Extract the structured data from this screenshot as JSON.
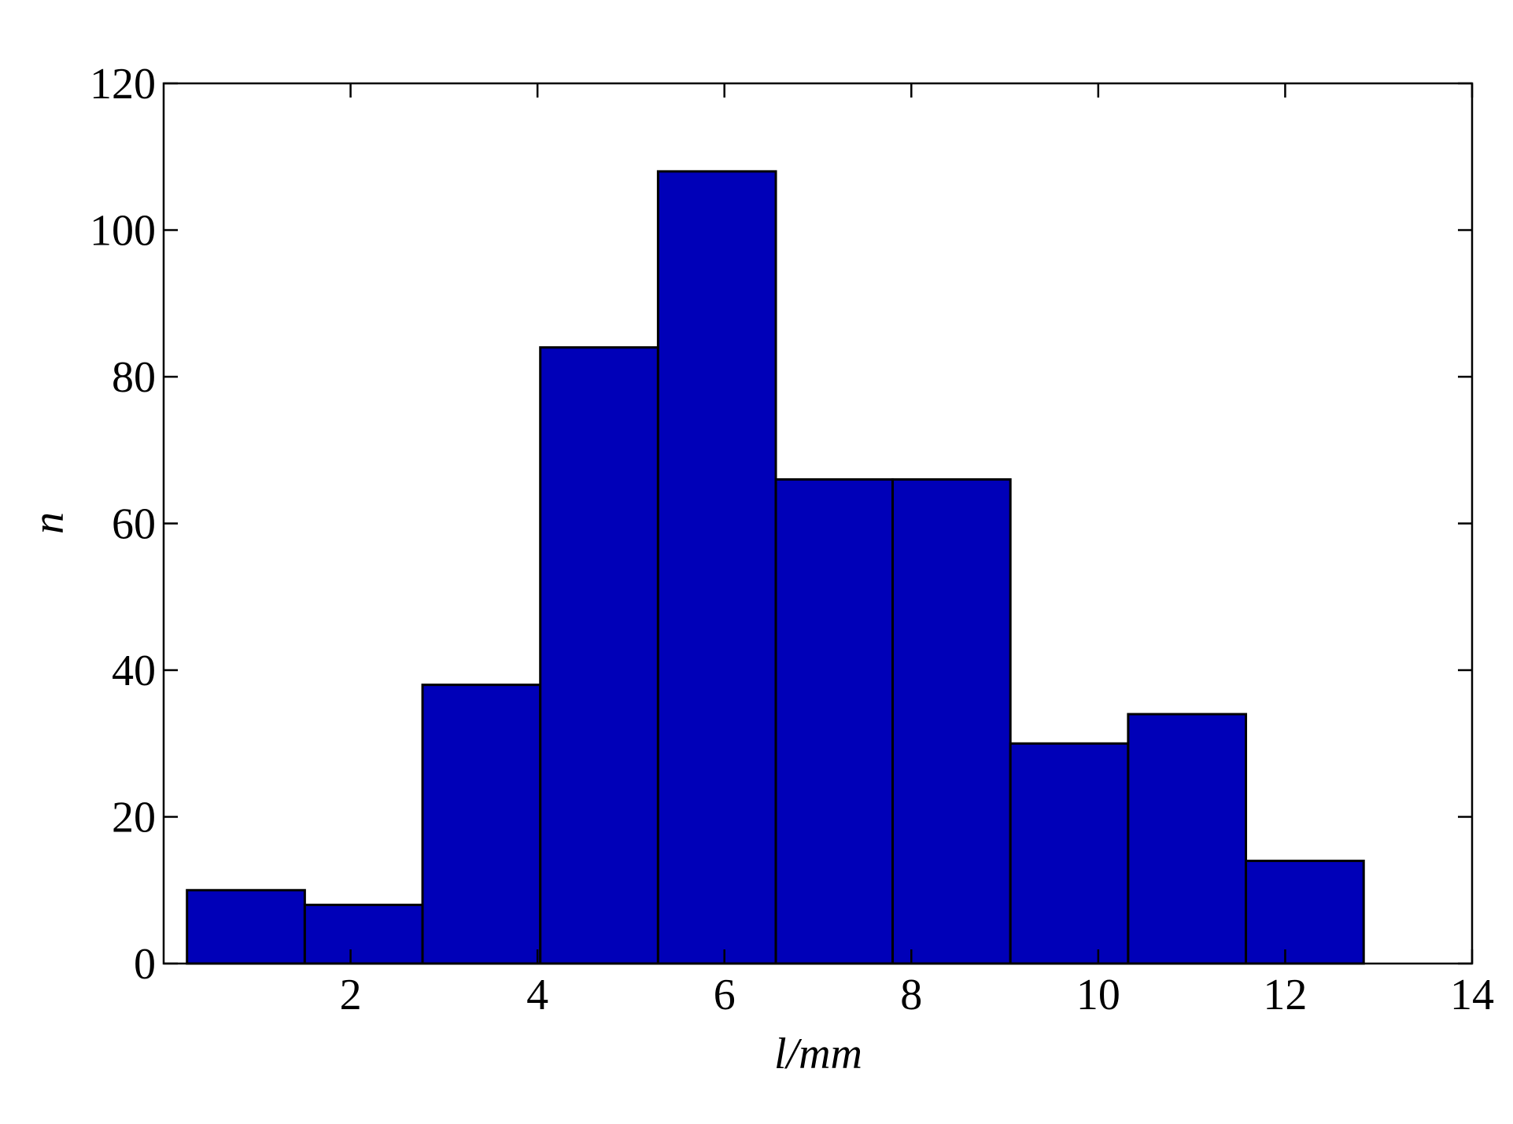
{
  "chart_data": {
    "type": "histogram",
    "xlabel": "l/mm",
    "ylabel": "n",
    "bins": [
      0.25,
      1.51,
      2.77,
      4.03,
      5.29,
      6.55,
      7.8,
      9.06,
      10.32,
      11.58,
      12.84
    ],
    "values": [
      10,
      8,
      38,
      84,
      108,
      66,
      66,
      30,
      34,
      14
    ],
    "color": "#0000b8",
    "xlim": [
      0,
      14
    ],
    "xticks": [
      2,
      4,
      6,
      8,
      10,
      12,
      14
    ],
    "ylim": [
      0,
      120
    ],
    "yticks": [
      0,
      20,
      40,
      60,
      80,
      100,
      120
    ]
  }
}
